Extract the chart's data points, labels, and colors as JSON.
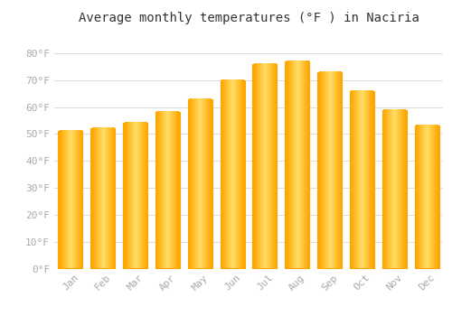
{
  "title": "Average monthly temperatures (°F ) in Naciria",
  "months": [
    "Jan",
    "Feb",
    "Mar",
    "Apr",
    "May",
    "Jun",
    "Jul",
    "Aug",
    "Sep",
    "Oct",
    "Nov",
    "Dec"
  ],
  "values": [
    51,
    52,
    54,
    58,
    63,
    70,
    76,
    77,
    73,
    66,
    59,
    53
  ],
  "bar_color_center": "#FFD966",
  "bar_color_edge": "#FFA500",
  "background_color": "#FFFFFF",
  "grid_color": "#DDDDDD",
  "ylim": [
    0,
    88
  ],
  "yticks": [
    0,
    10,
    20,
    30,
    40,
    50,
    60,
    70,
    80
  ],
  "ytick_labels": [
    "0°F",
    "10°F",
    "20°F",
    "30°F",
    "40°F",
    "50°F",
    "60°F",
    "70°F",
    "80°F"
  ],
  "title_fontsize": 10,
  "tick_fontsize": 8,
  "tick_color": "#AAAAAA",
  "title_color": "#333333"
}
